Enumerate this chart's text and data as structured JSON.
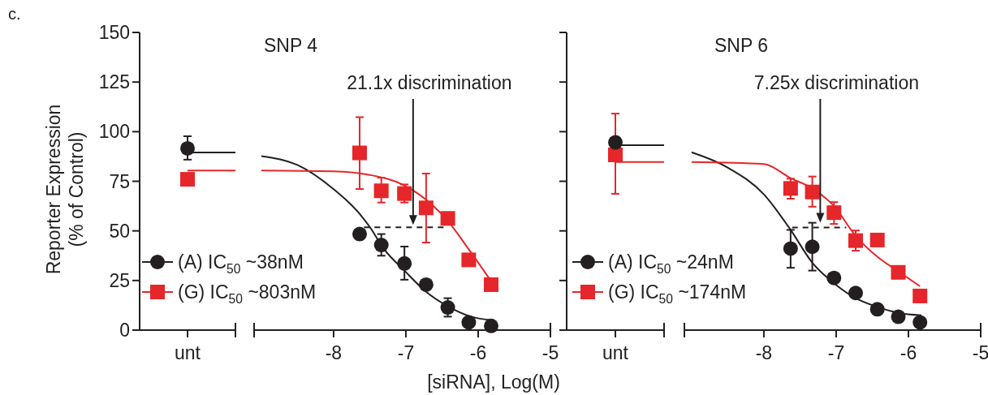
{
  "chart_data": [
    {
      "type": "scatter",
      "ylabel": "Reporter Expression\n(% of Control)",
      "annotations": [
        "c."
      ],
      "categories": [
        "unt"
      ],
      "ylim": [
        0,
        150
      ],
      "yticks": [
        0,
        25,
        50,
        75,
        100,
        125,
        150
      ],
      "ref_lines": [
        {
          "axis": "y",
          "value": 89.5,
          "color": "#231f20"
        },
        {
          "axis": "y",
          "value": 80.4,
          "color": "#e5262a"
        }
      ],
      "series": [
        {
          "color": "#231f20",
          "marker": "circle",
          "values": [
            91.6
          ],
          "errors": [
            [
              85.9,
              97.7
            ]
          ]
        },
        {
          "color": "#e5262a",
          "marker": "square",
          "values": [
            76
          ]
        }
      ]
    },
    {
      "type": "scatter",
      "title": "SNP 4",
      "xlabel": "[siRNA], Log(M)",
      "legend": "bottom left",
      "tick_labels": "x",
      "xlim": [
        -9.1,
        -5
      ],
      "xticks": [
        -8,
        -7,
        -6,
        -5
      ],
      "ylim": [
        0,
        150
      ],
      "annotations": [
        {
          "text": "21.1x discrimination",
          "x": -6.9,
          "y": 53
        }
      ],
      "series": [
        {
          "type": "line",
          "color": "#231f20",
          "marker": "none",
          "x": [
            -9.0,
            -8.5,
            -8,
            -7.64,
            -7.5,
            -7.3,
            -7.02,
            -6.72,
            -6.42,
            -6.1,
            -5.8
          ],
          "values": [
            87.7,
            83.2,
            71,
            58.6,
            52,
            40.7,
            30,
            19.3,
            12,
            6.8,
            5
          ]
        },
        {
          "type": "line",
          "color": "#e5262a",
          "marker": "none",
          "x": [
            -9.0,
            -8,
            -7.5,
            -7.02,
            -6.72,
            -6.42,
            -6.13,
            -5.82
          ],
          "values": [
            80.4,
            80,
            78.2,
            72.9,
            65.7,
            55,
            40.7,
            24.6
          ]
        },
        {
          "type": "line",
          "color": "#231f20",
          "marker": "none",
          "line_style": "dashed",
          "x": [
            -7.58,
            -6.45
          ],
          "values": [
            51.8,
            51.8
          ]
        },
        {
          "name": "(A) IC$_{50}$ ~38nM",
          "color": "#231f20",
          "marker": "circle",
          "x": [
            -7.64,
            -7.34,
            -7.02,
            -6.72,
            -6.42,
            -6.13,
            -5.82
          ],
          "values": [
            48.4,
            42.9,
            33.6,
            22.9,
            11.4,
            3.9,
            2.1
          ],
          "errors": [
            null,
            [
              37.5,
              48.4
            ],
            [
              25.4,
              42.1
            ],
            null,
            [
              6.8,
              16.1
            ],
            null,
            null
          ]
        },
        {
          "name": "(G) IC$_{50}$ ~803nM",
          "color": "#e5262a",
          "marker": "square",
          "x": [
            -7.64,
            -7.34,
            -7.02,
            -6.72,
            -6.42,
            -6.13,
            -5.82
          ],
          "values": [
            89.3,
            70.2,
            68.8,
            61.6,
            56.3,
            35.4,
            22.9
          ],
          "errors": [
            [
              71.1,
              107.3
            ],
            [
              64.3,
              76.8
            ],
            [
              64.3,
              73.4
            ],
            [
              44.1,
              78.9
            ],
            null,
            null,
            null
          ]
        }
      ]
    },
    {
      "type": "scatter",
      "tick_labels": "x",
      "categories": [
        "unt"
      ],
      "ylim": [
        0,
        150
      ],
      "yticks": [
        {
          "value": 0,
          "label": null
        },
        {
          "value": 25,
          "label": null
        },
        {
          "value": 50,
          "label": null
        },
        {
          "value": 75,
          "label": null
        },
        {
          "value": 100,
          "label": null
        },
        {
          "value": 125,
          "label": null
        },
        {
          "value": 150,
          "label": null
        }
      ],
      "ref_lines": [
        {
          "axis": "y",
          "value": 93.2,
          "color": "#231f20"
        },
        {
          "axis": "y",
          "value": 84.7,
          "color": "#e5262a"
        }
      ],
      "series": [
        {
          "color": "#e5262a",
          "marker": "square",
          "values": [
            88.3
          ],
          "errors": [
            [
              68.7,
              109.1
            ]
          ]
        },
        {
          "color": "#231f20",
          "marker": "circle",
          "values": [
            94.6
          ]
        }
      ]
    },
    {
      "type": "scatter",
      "title": "SNP 6",
      "legend": "bottom left",
      "tick_labels": "x",
      "xlim": [
        -9.1,
        -5
      ],
      "xticks": [
        -8,
        -7,
        -6,
        -5
      ],
      "ylim": [
        0,
        150
      ],
      "annotations": [
        {
          "text": "7.25x discrimination",
          "x": -7.22,
          "y": 54.2
        }
      ],
      "series": [
        {
          "type": "line",
          "color": "#231f20",
          "marker": "none",
          "x": [
            -9.0,
            -8.5,
            -8,
            -7.63,
            -7.33,
            -7.03,
            -6.73,
            -6.43,
            -6.14,
            -5.82
          ],
          "values": [
            89.6,
            81.9,
            68.4,
            50.5,
            34,
            23.6,
            16.1,
            11.7,
            8.7,
            7.5
          ]
        },
        {
          "type": "line",
          "color": "#e5262a",
          "marker": "none",
          "x": [
            -9.0,
            -8,
            -7.63,
            -7.33,
            -7.03,
            -6.73,
            -6.43,
            -6.14,
            -5.84
          ],
          "values": [
            84.7,
            83.7,
            76.6,
            71.4,
            62.5,
            47.5,
            37,
            29.6,
            22.1
          ]
        },
        {
          "type": "line",
          "color": "#231f20",
          "marker": "none",
          "line_style": "dashed",
          "x": [
            -7.61,
            -6.86
          ],
          "values": [
            51.7,
            51.7
          ]
        },
        {
          "name": "(A) IC$_{50}$ ~24nM",
          "color": "#231f20",
          "marker": "circle",
          "x": [
            -7.63,
            -7.33,
            -7.03,
            -6.73,
            -6.43,
            -6.14,
            -5.84
          ],
          "values": [
            41.1,
            42,
            26.3,
            18.7,
            10.5,
            6.7,
            3.9
          ],
          "errors": [
            [
              31.4,
              50.5
            ],
            [
              30,
              54.1
            ],
            null,
            null,
            null,
            null,
            null
          ]
        },
        {
          "name": "(G) IC$_{50}$ ~174nM",
          "color": "#e5262a",
          "marker": "square",
          "x": [
            -7.63,
            -7.33,
            -7.03,
            -6.73,
            -6.43,
            -6.14,
            -5.84
          ],
          "values": [
            71.4,
            69.6,
            59.2,
            45.1,
            45.4,
            29.1,
            17.2
          ],
          "errors": [
            [
              66.2,
              76.3
            ],
            [
              62.2,
              77.4
            ],
            [
              53.5,
              64.5
            ],
            [
              40,
              50.2
            ],
            null,
            null,
            null
          ]
        }
      ]
    }
  ]
}
